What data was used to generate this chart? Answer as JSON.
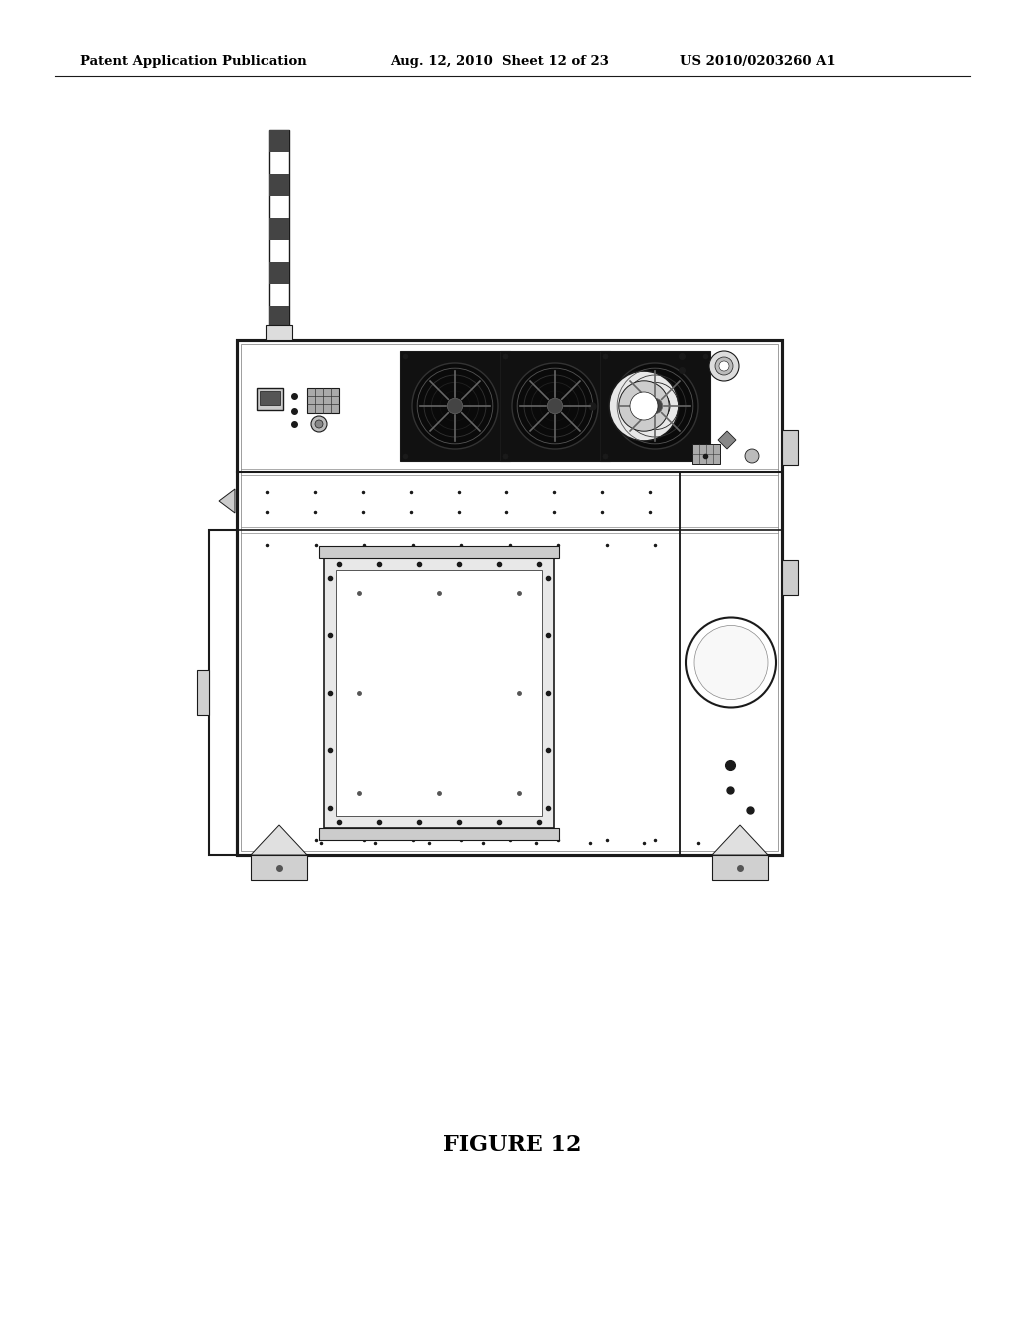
{
  "bg_color": "#ffffff",
  "header_left": "Patent Application Publication",
  "header_mid": "Aug. 12, 2010  Sheet 12 of 23",
  "header_right": "US 2010/0203260 A1",
  "figure_label": "FIGURE 12",
  "lc": "#1a1a1a",
  "lw": 1.5
}
